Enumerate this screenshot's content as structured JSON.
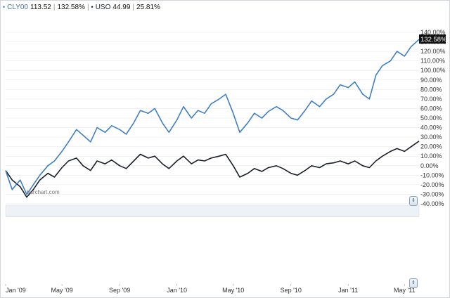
{
  "legend": {
    "series1_name": "CLY00",
    "series1_price": "113.52",
    "series1_change": "132.58%",
    "separator": "|",
    "series2_name": "USO",
    "series2_price": "44.99",
    "series2_change": "25.81%",
    "symbol_glyph": "•"
  },
  "watermark": "barchart.com",
  "last_value_label": "132.58%",
  "colors": {
    "series1": "#3f7fc4",
    "series2": "#1a1f2b",
    "last_label_bg": "#111111",
    "panel_strip": "#eef1f5",
    "grid": "#e6e6e6"
  },
  "scroll_glyph": "⇕",
  "chart_data": {
    "type": "line",
    "yticks": [
      "140.00%",
      "130.00%",
      "120.00%",
      "110.00%",
      "100.00%",
      "90.00%",
      "80.00%",
      "70.00%",
      "60.00%",
      "50.00%",
      "40.00%",
      "30.00%",
      "20.00%",
      "10.00%",
      "0.00%",
      "-10.00%",
      "-20.00%",
      "-30.00%",
      "-40.00%"
    ],
    "ylim": [
      -40,
      140
    ],
    "xticks": [
      {
        "label": "Jan '09",
        "x": "2009-01"
      },
      {
        "label": "May '09",
        "x": "2009-05"
      },
      {
        "label": "Sep '09",
        "x": "2009-09"
      },
      {
        "label": "Jan '10",
        "x": "2010-01"
      },
      {
        "label": "May '10",
        "x": "2010-05"
      },
      {
        "label": "Sep '10",
        "x": "2010-09"
      },
      {
        "label": "Jan '11",
        "x": "2011-01"
      },
      {
        "label": "May '11",
        "x": "2011-05"
      }
    ],
    "xlim": [
      "2009-01",
      "2011-06"
    ],
    "series": [
      {
        "name": "CLY00",
        "points": [
          [
            "2009-01",
            -5
          ],
          [
            "2009-01-15",
            -25
          ],
          [
            "2009-02",
            -15
          ],
          [
            "2009-02-15",
            -30
          ],
          [
            "2009-03",
            -20
          ],
          [
            "2009-03-15",
            -10
          ],
          [
            "2009-04",
            0
          ],
          [
            "2009-04-15",
            5
          ],
          [
            "2009-05",
            15
          ],
          [
            "2009-05-15",
            25
          ],
          [
            "2009-06",
            38
          ],
          [
            "2009-06-15",
            32
          ],
          [
            "2009-07",
            25
          ],
          [
            "2009-07-15",
            40
          ],
          [
            "2009-08",
            35
          ],
          [
            "2009-08-15",
            42
          ],
          [
            "2009-09",
            38
          ],
          [
            "2009-09-15",
            33
          ],
          [
            "2009-10",
            45
          ],
          [
            "2009-10-15",
            58
          ],
          [
            "2009-11",
            55
          ],
          [
            "2009-11-15",
            60
          ],
          [
            "2009-12",
            45
          ],
          [
            "2009-12-15",
            35
          ],
          [
            "2010-01",
            48
          ],
          [
            "2010-01-15",
            62
          ],
          [
            "2010-02",
            50
          ],
          [
            "2010-02-15",
            58
          ],
          [
            "2010-03",
            55
          ],
          [
            "2010-03-15",
            65
          ],
          [
            "2010-04",
            70
          ],
          [
            "2010-04-15",
            75
          ],
          [
            "2010-05",
            55
          ],
          [
            "2010-05-15",
            35
          ],
          [
            "2010-06",
            45
          ],
          [
            "2010-06-15",
            55
          ],
          [
            "2010-07",
            50
          ],
          [
            "2010-07-15",
            57
          ],
          [
            "2010-08",
            62
          ],
          [
            "2010-08-15",
            58
          ],
          [
            "2010-09",
            50
          ],
          [
            "2010-09-15",
            48
          ],
          [
            "2010-10",
            58
          ],
          [
            "2010-10-15",
            68
          ],
          [
            "2010-11",
            62
          ],
          [
            "2010-11-15",
            70
          ],
          [
            "2010-12",
            75
          ],
          [
            "2010-12-15",
            85
          ],
          [
            "2011-01",
            82
          ],
          [
            "2011-01-15",
            88
          ],
          [
            "2011-02",
            75
          ],
          [
            "2011-02-15",
            70
          ],
          [
            "2011-03",
            95
          ],
          [
            "2011-03-15",
            105
          ],
          [
            "2011-04",
            110
          ],
          [
            "2011-04-15",
            120
          ],
          [
            "2011-05",
            115
          ],
          [
            "2011-05-15",
            125
          ],
          [
            "2011-06",
            132.58
          ]
        ]
      },
      {
        "name": "USO",
        "points": [
          [
            "2009-01",
            -5
          ],
          [
            "2009-01-15",
            -15
          ],
          [
            "2009-02",
            -22
          ],
          [
            "2009-02-15",
            -33
          ],
          [
            "2009-03",
            -25
          ],
          [
            "2009-03-15",
            -15
          ],
          [
            "2009-04",
            -8
          ],
          [
            "2009-04-15",
            -12
          ],
          [
            "2009-05",
            -2
          ],
          [
            "2009-05-15",
            5
          ],
          [
            "2009-06",
            8
          ],
          [
            "2009-06-15",
            0
          ],
          [
            "2009-07",
            -5
          ],
          [
            "2009-07-15",
            5
          ],
          [
            "2009-08",
            2
          ],
          [
            "2009-08-15",
            6
          ],
          [
            "2009-09",
            0
          ],
          [
            "2009-09-15",
            -3
          ],
          [
            "2009-10",
            5
          ],
          [
            "2009-10-15",
            12
          ],
          [
            "2009-11",
            8
          ],
          [
            "2009-11-15",
            10
          ],
          [
            "2009-12",
            2
          ],
          [
            "2009-12-15",
            -3
          ],
          [
            "2010-01",
            5
          ],
          [
            "2010-01-15",
            10
          ],
          [
            "2010-02",
            2
          ],
          [
            "2010-02-15",
            6
          ],
          [
            "2010-03",
            5
          ],
          [
            "2010-03-15",
            8
          ],
          [
            "2010-04",
            10
          ],
          [
            "2010-04-15",
            12
          ],
          [
            "2010-05",
            0
          ],
          [
            "2010-05-15",
            -12
          ],
          [
            "2010-06",
            -8
          ],
          [
            "2010-06-15",
            -3
          ],
          [
            "2010-07",
            -6
          ],
          [
            "2010-07-15",
            -2
          ],
          [
            "2010-08",
            0
          ],
          [
            "2010-08-15",
            -3
          ],
          [
            "2010-09",
            -8
          ],
          [
            "2010-09-15",
            -10
          ],
          [
            "2010-10",
            -5
          ],
          [
            "2010-10-15",
            0
          ],
          [
            "2010-11",
            -2
          ],
          [
            "2010-11-15",
            2
          ],
          [
            "2010-12",
            3
          ],
          [
            "2010-12-15",
            5
          ],
          [
            "2011-01",
            2
          ],
          [
            "2011-01-15",
            5
          ],
          [
            "2011-02",
            0
          ],
          [
            "2011-02-15",
            -2
          ],
          [
            "2011-03",
            5
          ],
          [
            "2011-03-15",
            10
          ],
          [
            "2011-04",
            15
          ],
          [
            "2011-04-15",
            18
          ],
          [
            "2011-05",
            15
          ],
          [
            "2011-05-15",
            20
          ],
          [
            "2011-06",
            25.81
          ]
        ]
      }
    ]
  }
}
